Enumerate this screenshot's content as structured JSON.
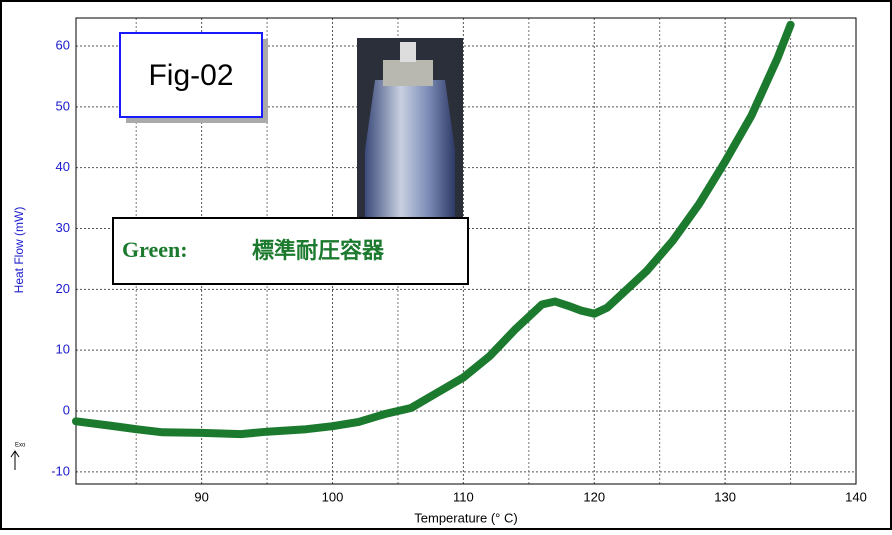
{
  "chart_data": {
    "type": "line",
    "figure_label": "Fig-02",
    "legend_prefix": "Green:",
    "exo_label": "Exo",
    "xlabel": "Temperature (° C)",
    "ylabel": "Heat Flow (mW)",
    "xlim": [
      80.4,
      140
    ],
    "ylim": [
      -12,
      64.6
    ],
    "xticks": [
      90,
      100,
      110,
      120,
      130,
      140
    ],
    "xminor": [
      85,
      95,
      105,
      115,
      125,
      135
    ],
    "yticks": [
      -10,
      0,
      10,
      20,
      30,
      40,
      50,
      60
    ],
    "grid": true,
    "series": [
      {
        "name": "標準耐圧容器",
        "color": "#1b7a2e",
        "x": [
          80.4,
          83,
          85,
          87,
          90,
          93,
          95,
          98,
          100,
          102,
          104,
          106,
          108,
          110,
          112,
          114,
          116,
          117,
          118,
          119,
          120,
          121,
          122,
          124,
          126,
          128,
          130,
          132,
          134,
          135
        ],
        "values": [
          -1.7,
          -2.4,
          -3,
          -3.5,
          -3.6,
          -3.8,
          -3.4,
          -3,
          -2.5,
          -1.8,
          -0.5,
          0.5,
          3,
          5.5,
          9,
          13.5,
          17.5,
          18,
          17.3,
          16.5,
          16,
          17,
          19,
          23,
          28,
          34,
          41,
          48.5,
          58,
          63.5
        ]
      }
    ]
  }
}
